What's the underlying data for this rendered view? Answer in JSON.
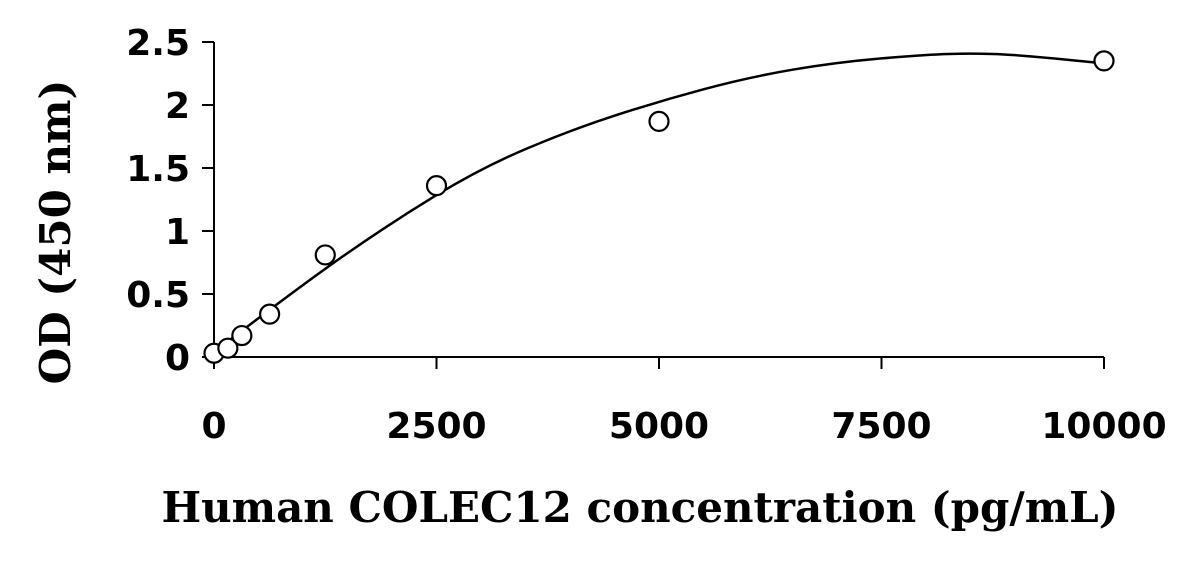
{
  "chart_data": {
    "type": "scatter",
    "xlabel": "Human COLEC12 concentration (pg/mL)",
    "ylabel": "OD (450 nm)",
    "xlim": [
      0,
      10000
    ],
    "ylim": [
      0,
      2.5
    ],
    "x_ticks": [
      0,
      2500,
      5000,
      7500,
      10000
    ],
    "x_tick_labels": [
      "0",
      "2500",
      "5000",
      "7500",
      "10000"
    ],
    "y_ticks": [
      0,
      0.5,
      1,
      1.5,
      2,
      2.5
    ],
    "y_tick_labels": [
      "0",
      "0.5",
      "1",
      "1.5",
      "2",
      "2.5"
    ],
    "grid": false,
    "legend": "none",
    "series": [
      {
        "marker": "open-circle",
        "x": [
          0,
          156,
          313,
          625,
          1250,
          2500,
          5000,
          10000
        ],
        "y": [
          0.03,
          0.07,
          0.17,
          0.34,
          0.81,
          1.36,
          1.87,
          2.35
        ]
      }
    ],
    "fit_curve": {
      "type": "polynomial-2",
      "x": [
        0,
        1000,
        2000,
        3000,
        4000,
        5000,
        6000,
        7000,
        8000,
        8500,
        9000,
        10000
      ],
      "y": [
        0.04,
        0.58,
        1.07,
        1.5,
        1.8,
        2.03,
        2.22,
        2.34,
        2.4,
        2.41,
        2.4,
        2.33
      ]
    }
  }
}
